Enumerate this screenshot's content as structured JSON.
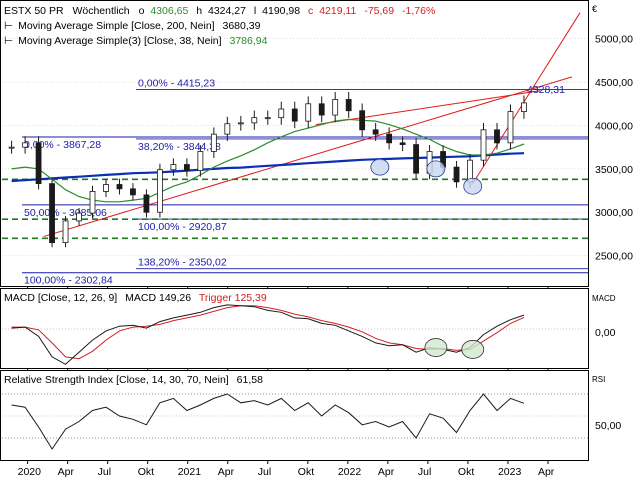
{
  "header": {
    "symbol": "ESTX 50 PR",
    "interval": "Wöchentlich",
    "o_label": "o",
    "o_value": "4306,65",
    "h_label": "h",
    "h_value": "4324,27",
    "l_label": "l",
    "l_value": "4190,98",
    "c_label": "c",
    "c_value": "4219,11",
    "change": "-75,69",
    "change_pct": "-1,76%",
    "currency": "€"
  },
  "legend": [
    {
      "text": "Moving Average Simple [Close, 200, Nein]",
      "value": "3680,39",
      "color": "#000000"
    },
    {
      "text": "Moving Average Simple(3) [Close, 38, Nein]",
      "value": "3786,94",
      "color": "#2e8b2e"
    }
  ],
  "colors": {
    "price": "#1a1a1a",
    "ma200": "#0a2fb5",
    "ma38": "#2e8b2e",
    "fib": "#1c1ca8",
    "support": "#1f7a1f",
    "trend": "#e01b1b",
    "macd": "#1a1a1a",
    "trigger": "#d42020",
    "rsi": "#1a1a1a",
    "change_neg": "#d42020",
    "value_green": "#2e8b2e",
    "value_blue": "#1c1ca8"
  },
  "chart_data": [
    {
      "type": "candlestick",
      "title": "ESTX 50 PR Wöchentlich",
      "x": [
        "2019-12",
        "2020-01",
        "2020-02",
        "2020-03",
        "2020-04",
        "2020-05",
        "2020-06",
        "2020-07",
        "2020-08",
        "2020-09",
        "2020-10",
        "2020-11",
        "2020-12",
        "2021-01",
        "2021-02",
        "2021-03",
        "2021-04",
        "2021-05",
        "2021-06",
        "2021-07",
        "2021-08",
        "2021-09",
        "2021-10",
        "2021-11",
        "2021-12",
        "2022-01",
        "2022-02",
        "2022-03",
        "2022-04",
        "2022-05",
        "2022-06",
        "2022-07",
        "2022-08",
        "2022-09",
        "2022-10",
        "2022-11",
        "2022-12",
        "2023-01",
        "2023-02"
      ],
      "close": [
        3750,
        3800,
        3330,
        2650,
        2900,
        2990,
        3240,
        3320,
        3270,
        3200,
        3000,
        3490,
        3550,
        3480,
        3700,
        3900,
        4020,
        4030,
        4090,
        4090,
        4190,
        4050,
        4250,
        4120,
        4300,
        4170,
        3950,
        3900,
        3800,
        3780,
        3450,
        3700,
        3520,
        3350,
        3600,
        3950,
        3800,
        4160,
        4260
      ],
      "ma200": [
        3360,
        3370,
        3380,
        3390,
        3400,
        3410,
        3420,
        3430,
        3440,
        3450,
        3455,
        3460,
        3470,
        3480,
        3490,
        3500,
        3510,
        3515,
        3525,
        3535,
        3545,
        3555,
        3565,
        3575,
        3585,
        3595,
        3605,
        3610,
        3615,
        3620,
        3625,
        3630,
        3635,
        3640,
        3645,
        3655,
        3665,
        3675,
        3680.39
      ],
      "ma38": [
        3500,
        3520,
        3500,
        3380,
        3260,
        3180,
        3140,
        3120,
        3120,
        3140,
        3160,
        3230,
        3300,
        3350,
        3430,
        3520,
        3590,
        3650,
        3720,
        3800,
        3870,
        3930,
        3970,
        4010,
        4050,
        4070,
        4060,
        4050,
        4010,
        3960,
        3900,
        3840,
        3760,
        3700,
        3660,
        3660,
        3680,
        3730,
        3786.94
      ],
      "ylim": [
        2150,
        5400
      ],
      "yticks": [
        "2500,00",
        "3000,00",
        "3500,00",
        "4000,00",
        "4500,00",
        "5000,00"
      ],
      "ytick_values": [
        2500,
        3000,
        3500,
        4000,
        4500,
        5000
      ],
      "xticks": [
        "2020",
        "Apr",
        "Jul",
        "Okt",
        "2021",
        "Apr",
        "Jul",
        "Okt",
        "2022",
        "Apr",
        "Jul",
        "Okt",
        "2023",
        "Apr"
      ],
      "xtick_values": [
        2020.0,
        2020.25,
        2020.5,
        2020.75,
        2021.0,
        2021.25,
        2021.5,
        2021.75,
        2022.0,
        2022.25,
        2022.5,
        2022.75,
        2023.0,
        2023.25
      ],
      "last_price_label": "4328,31",
      "last_price": 4328.31,
      "fibonacci": [
        {
          "label": "0,00% - 4415,23",
          "value": 4415.23
        },
        {
          "label": "38,20% - 3844,38",
          "value": 3844.38
        },
        {
          "label": "100,00% - 2920,87",
          "value": 2920.87
        },
        {
          "label": "138,20% - 2350,02",
          "value": 2350.02
        },
        {
          "label": "0,00% - 3867,28",
          "value": 3867.28
        },
        {
          "label": "50,00% - 3085,06",
          "value": 3085.06
        },
        {
          "label": "100,00% - 2302,84",
          "value": 2302.84
        }
      ],
      "support_lines": [
        3380,
        2920,
        2700
      ]
    },
    {
      "type": "line",
      "title": "MACD [Close, 12, 26, 9]",
      "value_label": "MACD 149,26",
      "trigger_label": "Trigger 125,39",
      "axis_label": "MACD",
      "ytick": "0,00",
      "macd": [
        10,
        20,
        -80,
        -300,
        -380,
        -250,
        -120,
        -20,
        30,
        40,
        10,
        80,
        120,
        150,
        180,
        230,
        260,
        250,
        240,
        200,
        180,
        120,
        110,
        60,
        40,
        -20,
        -80,
        -150,
        -180,
        -170,
        -250,
        -200,
        -220,
        -250,
        -200,
        -60,
        30,
        100,
        149.26
      ],
      "trigger": [
        20,
        20,
        -10,
        -150,
        -300,
        -320,
        -240,
        -120,
        -20,
        20,
        30,
        50,
        90,
        120,
        150,
        190,
        230,
        250,
        250,
        230,
        200,
        160,
        130,
        90,
        60,
        20,
        -30,
        -100,
        -150,
        -170,
        -210,
        -220,
        -210,
        -230,
        -220,
        -130,
        -40,
        60,
        125.39
      ],
      "ylim": [
        -420,
        420
      ]
    },
    {
      "type": "line",
      "title": "Relative Strength Index [Close, 14, 30, 70, Nein]",
      "value_label": "61,58",
      "axis_label": "RSI",
      "ytick": "50,00",
      "rsi": [
        60,
        58,
        40,
        20,
        38,
        45,
        55,
        58,
        50,
        47,
        42,
        62,
        66,
        55,
        60,
        66,
        70,
        62,
        64,
        60,
        66,
        55,
        62,
        50,
        60,
        53,
        42,
        45,
        40,
        45,
        30,
        52,
        48,
        35,
        55,
        70,
        55,
        66,
        61.58
      ],
      "ylim": [
        10,
        90
      ],
      "levels": [
        70,
        30
      ]
    }
  ]
}
